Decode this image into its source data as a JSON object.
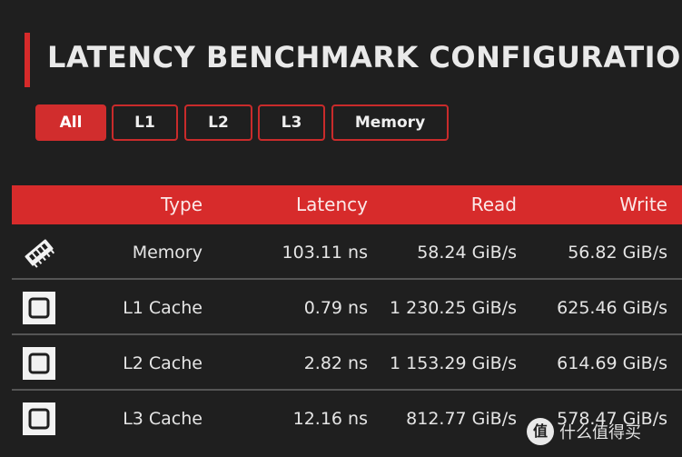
{
  "header": {
    "title": "LATENCY BENCHMARK CONFIGURATION"
  },
  "filters": [
    {
      "label": "All",
      "active": true
    },
    {
      "label": "L1",
      "active": false
    },
    {
      "label": "L2",
      "active": false
    },
    {
      "label": "L3",
      "active": false
    },
    {
      "label": "Memory",
      "active": false
    }
  ],
  "table": {
    "columns": [
      "Type",
      "Latency",
      "Read",
      "Write"
    ],
    "rows": [
      {
        "icon": "memory-module-icon",
        "type": "Memory",
        "latency": "103.11 ns",
        "read": "58.24 GiB/s",
        "write": "56.82 GiB/s"
      },
      {
        "icon": "cpu-chip-icon",
        "type": "L1 Cache",
        "latency": "0.79 ns",
        "read": "1 230.25 GiB/s",
        "write": "625.46 GiB/s"
      },
      {
        "icon": "cpu-chip-icon",
        "type": "L2 Cache",
        "latency": "2.82 ns",
        "read": "1 153.29 GiB/s",
        "write": "614.69 GiB/s"
      },
      {
        "icon": "cpu-chip-icon",
        "type": "L3 Cache",
        "latency": "12.16 ns",
        "read": "812.77 GiB/s",
        "write": "578.47 GiB/s"
      }
    ]
  },
  "watermark": {
    "logo": "值",
    "text": "什么值得买"
  },
  "colors": {
    "accent": "#d72b2b",
    "background": "#1f1f1f",
    "text": "#e6e6e6"
  }
}
